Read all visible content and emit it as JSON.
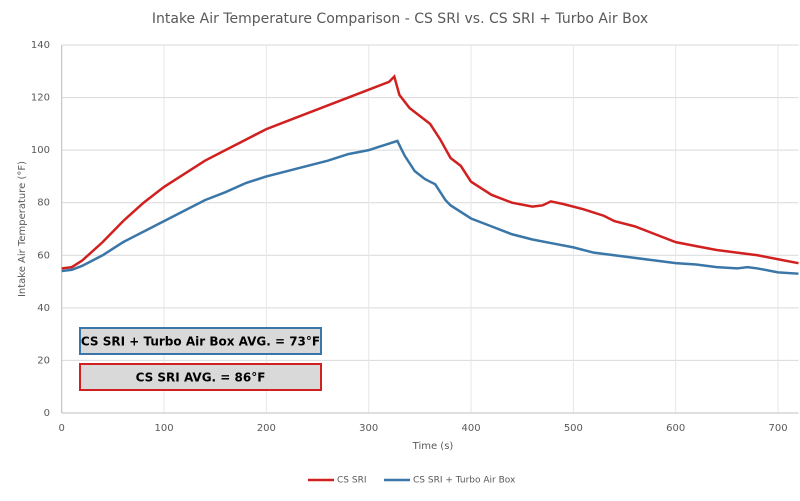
{
  "chart_data": {
    "type": "line",
    "title": "Intake Air Temperature Comparison - CS SRI vs. CS SRI + Turbo Air Box",
    "x_label": "Time (s)",
    "y_label": "Intake Air Temperature (°F)",
    "xlim": [
      0,
      720
    ],
    "xticks": [
      0,
      100,
      200,
      300,
      400,
      500,
      600,
      700
    ],
    "ylim": [
      0,
      140
    ],
    "yticks": [
      0,
      20,
      40,
      60,
      80,
      100,
      120,
      140
    ],
    "grid": true,
    "legend": "bottom",
    "series": [
      {
        "name": "CS SRI",
        "color": "#d0201f",
        "x": [
          0,
          10,
          20,
          40,
          60,
          80,
          100,
          120,
          140,
          160,
          180,
          200,
          220,
          240,
          260,
          280,
          300,
          320,
          325,
          330,
          340,
          350,
          360,
          370,
          380,
          390,
          400,
          420,
          440,
          460,
          470,
          478,
          490,
          510,
          530,
          540,
          560,
          580,
          600,
          620,
          640,
          660,
          680,
          700,
          720
        ],
        "values": [
          55,
          55.5,
          58,
          65,
          73,
          80,
          86,
          91,
          96,
          100,
          104,
          108,
          111,
          114,
          117,
          120,
          123,
          126,
          128,
          121,
          116,
          113,
          110,
          104,
          97,
          94,
          88,
          83,
          80,
          78.5,
          79,
          80.5,
          79.5,
          77.5,
          75,
          73,
          71,
          68,
          65,
          63.5,
          62,
          61,
          60,
          58.5,
          57
        ]
      },
      {
        "name": "CS SRI + Turbo Air Box",
        "color": "#3a77a8",
        "x": [
          0,
          10,
          20,
          40,
          60,
          80,
          100,
          120,
          140,
          160,
          180,
          200,
          220,
          240,
          260,
          280,
          300,
          320,
          328,
          335,
          345,
          355,
          365,
          375,
          380,
          400,
          420,
          440,
          460,
          480,
          500,
          520,
          540,
          560,
          580,
          600,
          620,
          640,
          660,
          670,
          680,
          700,
          720
        ],
        "values": [
          54,
          54.5,
          56,
          60,
          65,
          69,
          73,
          77,
          81,
          84,
          87.5,
          90,
          92,
          94,
          96,
          98.5,
          100,
          102.5,
          103.5,
          98,
          92,
          89,
          87,
          81,
          79,
          74,
          71,
          68,
          66,
          64.5,
          63,
          61,
          60,
          59,
          58,
          57,
          56.5,
          55.5,
          55,
          55.5,
          55,
          53.5,
          53
        ]
      }
    ],
    "annotations": [
      {
        "text": "CS SRI + Turbo Air Box AVG. = 73°F",
        "color": "#3a77a8"
      },
      {
        "text": "CS SRI AVG. = 86°F",
        "color": "#d0201f"
      }
    ]
  }
}
